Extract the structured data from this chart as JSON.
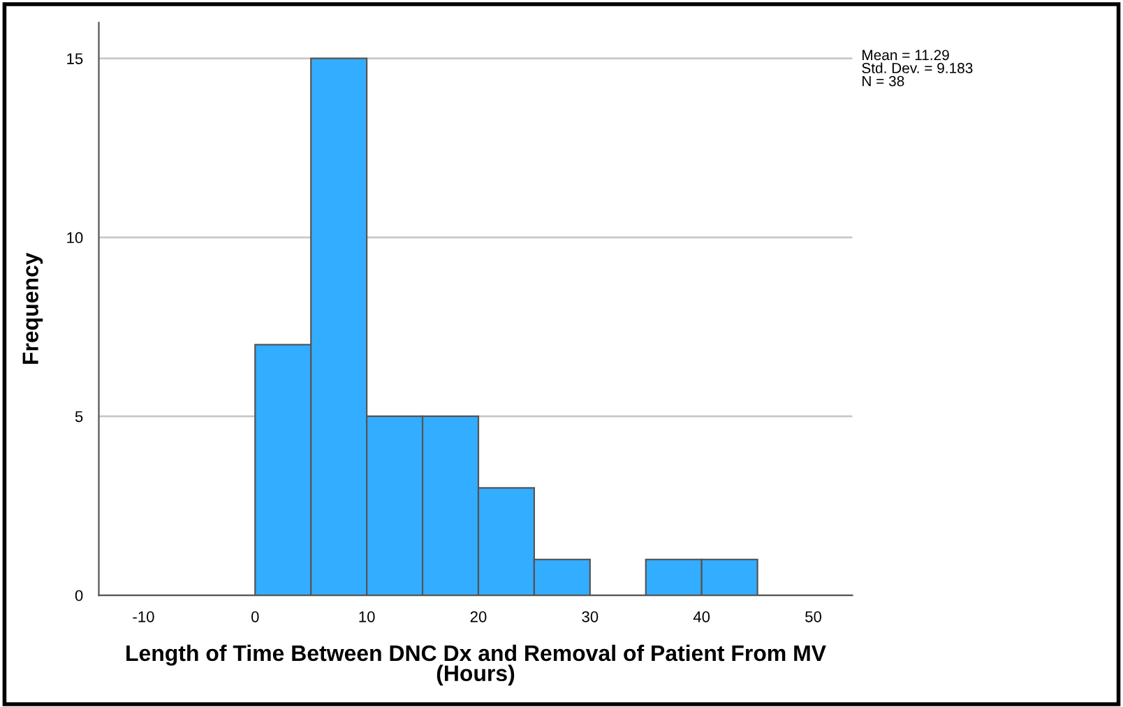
{
  "chart_data": {
    "type": "histogram",
    "xlabel": "Length of Time Between DNC Dx and Removal of Patient From MV\n(Hours)",
    "ylabel": "Frequency",
    "bins": [
      0,
      5,
      10,
      15,
      20,
      25,
      30,
      35,
      40,
      45
    ],
    "values": [
      7,
      15,
      5,
      5,
      3,
      1,
      0,
      1,
      1
    ],
    "color": "#33adff",
    "xlim": [
      -14,
      53.5
    ],
    "xticks": [
      -10,
      0,
      10,
      20,
      30,
      40,
      50
    ],
    "ylim": [
      0,
      16
    ],
    "yticks": [
      0,
      5,
      10,
      15
    ],
    "grid": "y",
    "annotations": [
      "Mean = 11.29\nStd. Dev. = 9.183\nN = 38"
    ]
  }
}
